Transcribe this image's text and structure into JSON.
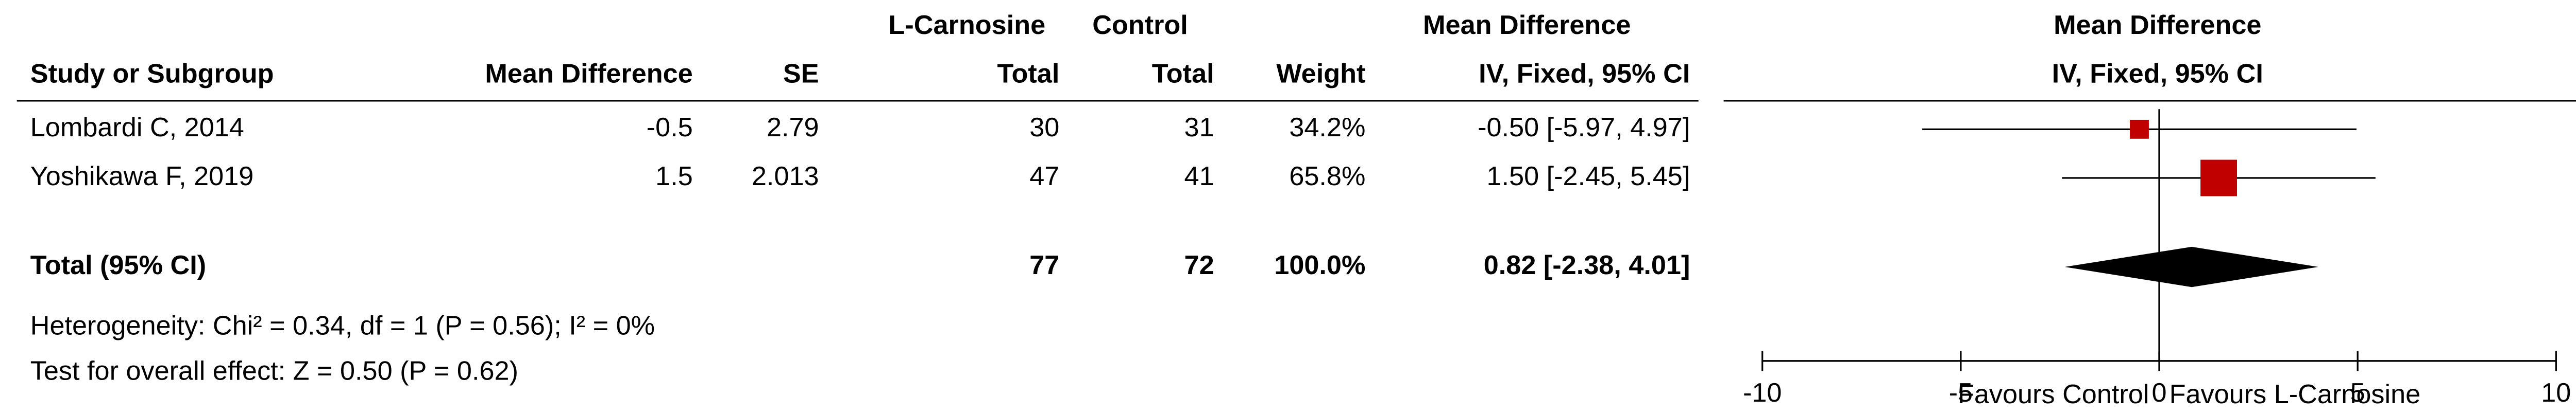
{
  "header": {
    "group_experimental": "L-Carnosine",
    "group_control": "Control",
    "md_col_top": "Mean Difference",
    "plot_top": "Mean Difference",
    "study": "Study or Subgroup",
    "md": "Mean Difference",
    "se": "SE",
    "total_e": "Total",
    "total_c": "Total",
    "weight": "Weight",
    "method": "IV, Fixed, 95% CI",
    "plot_method": "IV, Fixed, 95% CI"
  },
  "rows": [
    {
      "study": "Lombardi C, 2014",
      "md": -0.5,
      "se": 2.79,
      "total_e": 30,
      "total_c": 31,
      "weight": 34.2,
      "weight_label": "34.2%",
      "ci": [
        -5.97,
        4.97
      ],
      "ci_label": "-0.50 [-5.97, 4.97]"
    },
    {
      "study": "Yoshikawa F, 2019",
      "md": 1.5,
      "se": 2.013,
      "total_e": 47,
      "total_c": 41,
      "weight": 65.8,
      "weight_label": "65.8%",
      "ci": [
        -2.45,
        5.45
      ],
      "ci_label": "1.50 [-2.45, 5.45]"
    }
  ],
  "total": {
    "label": "Total (95% CI)",
    "total_e": 77,
    "total_c": 72,
    "weight": 100,
    "weight_label": "100.0%",
    "estimate": 0.82,
    "ci": [
      -2.38,
      4.01
    ],
    "ci_label": "0.82 [-2.38, 4.01]"
  },
  "heterogeneity": "Heterogeneity: Chi² = 0.34, df = 1 (P = 0.56); I² = 0%",
  "overall": "Test for overall effect: Z = 0.50 (P = 0.62)",
  "plot": {
    "xlim": [
      -10,
      10
    ],
    "xticks": [
      -10,
      -5,
      0,
      5,
      10
    ],
    "left_label": "Favours Control",
    "right_label": "Favours L-Carnosine",
    "square_color": "#c00000",
    "diamond_color": "#000000"
  }
}
